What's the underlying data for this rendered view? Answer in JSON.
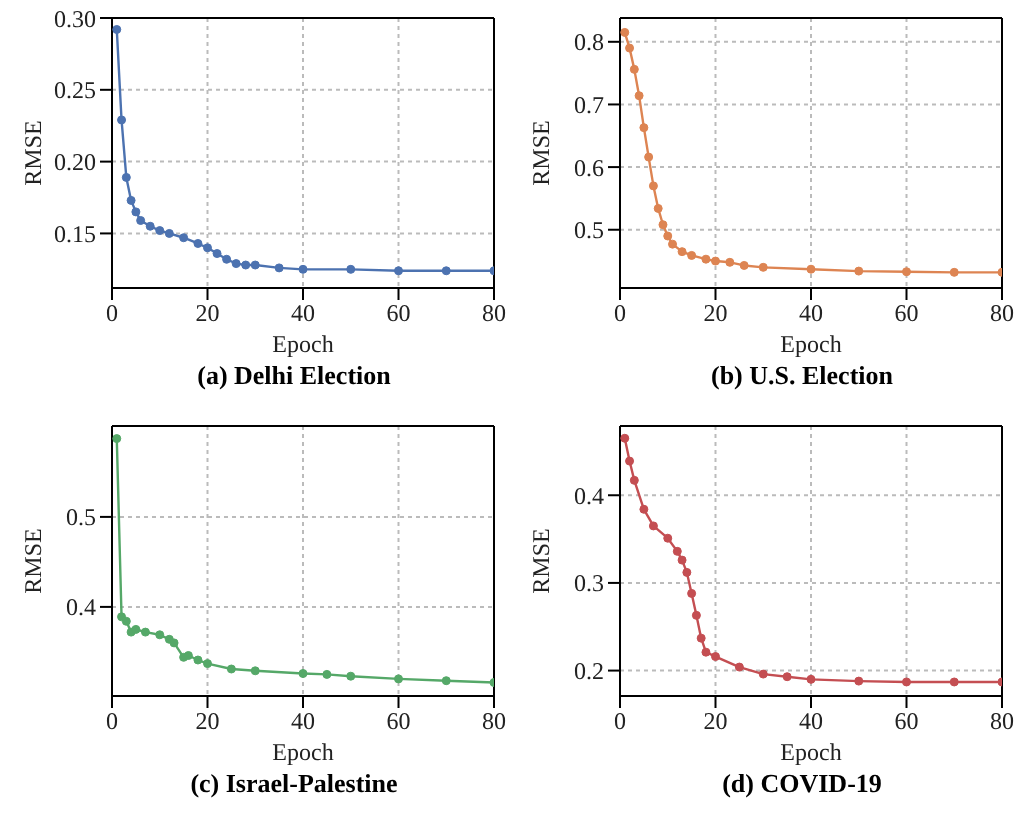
{
  "chart_data": [
    {
      "type": "line",
      "title": "(a) Delhi Election",
      "xlabel": "Epoch",
      "ylabel": "RMSE",
      "color": "#4c72b0",
      "marker": "circle",
      "line_style": "solid",
      "grid": true,
      "xlim": [
        0,
        80
      ],
      "xticks": [
        0,
        20,
        40,
        60,
        80
      ],
      "ylim": [
        0.112,
        0.3
      ],
      "yticks": [
        {
          "value": 0.15,
          "label": "0.15"
        },
        {
          "value": 0.2,
          "label": "0.20"
        },
        {
          "value": 0.25,
          "label": "0.25"
        },
        {
          "value": 0.3,
          "label": "0.30"
        }
      ],
      "x": [
        1,
        2,
        3,
        4,
        5,
        6,
        8,
        10,
        12,
        15,
        18,
        20,
        22,
        24,
        26,
        28,
        30,
        35,
        40,
        50,
        60,
        70,
        80
      ],
      "values": [
        0.292,
        0.229,
        0.189,
        0.173,
        0.165,
        0.159,
        0.155,
        0.152,
        0.15,
        0.147,
        0.143,
        0.14,
        0.136,
        0.132,
        0.129,
        0.128,
        0.128,
        0.126,
        0.125,
        0.125,
        0.124,
        0.124,
        0.124
      ]
    },
    {
      "type": "line",
      "title": "(b) U.S. Election",
      "xlabel": "Epoch",
      "ylabel": "RMSE",
      "color": "#dd8452",
      "marker": "circle",
      "line_style": "solid",
      "grid": true,
      "xlim": [
        0,
        80
      ],
      "xticks": [
        0,
        20,
        40,
        60,
        80
      ],
      "ylim": [
        0.407,
        0.838
      ],
      "yticks": [
        0.5,
        0.6,
        0.7,
        0.8
      ],
      "x": [
        1,
        2,
        3,
        4,
        5,
        6,
        7,
        8,
        9,
        10,
        11,
        13,
        15,
        18,
        20,
        23,
        26,
        30,
        40,
        50,
        60,
        70,
        80
      ],
      "values": [
        0.815,
        0.79,
        0.756,
        0.714,
        0.663,
        0.616,
        0.57,
        0.534,
        0.508,
        0.49,
        0.477,
        0.465,
        0.459,
        0.453,
        0.45,
        0.448,
        0.443,
        0.44,
        0.437,
        0.434,
        0.433,
        0.432,
        0.432
      ]
    },
    {
      "type": "line",
      "title": "(c) Israel-Palestine",
      "xlabel": "Epoch",
      "ylabel": "RMSE",
      "color": "#55a868",
      "marker": "circle",
      "line_style": "solid",
      "grid": true,
      "xlim": [
        0,
        80
      ],
      "xticks": [
        0,
        20,
        40,
        60,
        80
      ],
      "ylim": [
        0.301,
        0.601
      ],
      "yticks": [
        0.4,
        0.5
      ],
      "x": [
        1,
        2,
        3,
        4,
        5,
        7,
        10,
        12,
        13,
        15,
        16,
        18,
        20,
        25,
        30,
        40,
        45,
        50,
        60,
        70,
        80
      ],
      "values": [
        0.587,
        0.389,
        0.384,
        0.372,
        0.375,
        0.372,
        0.369,
        0.364,
        0.36,
        0.344,
        0.346,
        0.341,
        0.337,
        0.331,
        0.329,
        0.326,
        0.325,
        0.323,
        0.32,
        0.318,
        0.316
      ]
    },
    {
      "type": "line",
      "title": "(d) COVID-19",
      "xlabel": "Epoch",
      "ylabel": "RMSE",
      "color": "#c44e52",
      "marker": "circle",
      "line_style": "solid",
      "grid": true,
      "xlim": [
        0,
        80
      ],
      "xticks": [
        0,
        20,
        40,
        60,
        80
      ],
      "ylim": [
        0.171,
        0.479
      ],
      "yticks": [
        0.2,
        0.3,
        0.4
      ],
      "x": [
        1,
        2,
        3,
        5,
        7,
        10,
        12,
        13,
        14,
        15,
        16,
        17,
        18,
        20,
        25,
        30,
        35,
        40,
        50,
        60,
        70,
        80
      ],
      "values": [
        0.465,
        0.439,
        0.417,
        0.384,
        0.365,
        0.351,
        0.336,
        0.326,
        0.312,
        0.288,
        0.263,
        0.237,
        0.221,
        0.216,
        0.204,
        0.196,
        0.193,
        0.19,
        0.188,
        0.187,
        0.187,
        0.187
      ]
    }
  ]
}
